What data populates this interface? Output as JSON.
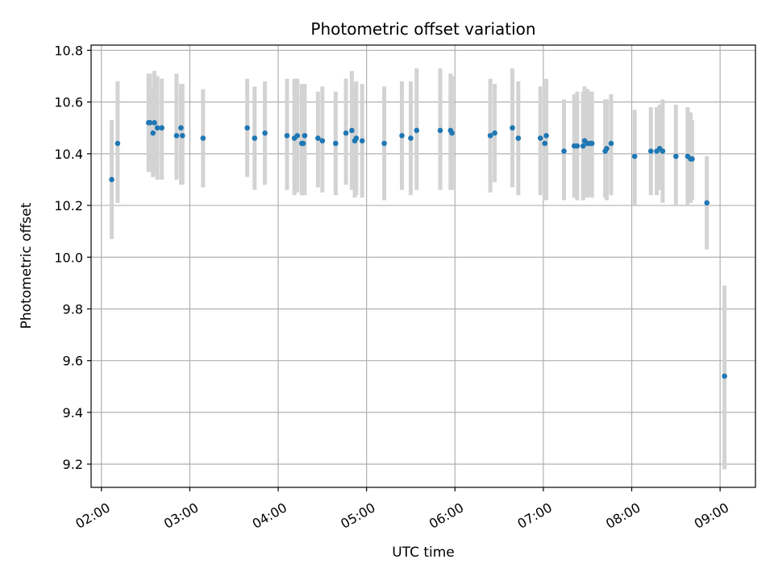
{
  "chart_data": {
    "type": "scatter",
    "title": "Photometric offset variation",
    "xlabel": "UTC time",
    "ylabel": "Photometric offset",
    "x_unit": "UTC time (HH:MM)",
    "xlim": [
      "01:53",
      "09:24"
    ],
    "ylim": [
      9.11,
      10.82
    ],
    "x_ticks": [
      "02:00",
      "03:00",
      "04:00",
      "05:00",
      "06:00",
      "07:00",
      "08:00",
      "09:00"
    ],
    "y_ticks": [
      "9.2",
      "9.4",
      "9.6",
      "9.8",
      "10.0",
      "10.2",
      "10.4",
      "10.6",
      "10.8"
    ],
    "grid": true,
    "colors": {
      "point": "#1f77b4",
      "error_bar": "#d3d3d3",
      "grid": "#b0b0b0"
    },
    "series": [
      {
        "x": [
          "02:07",
          "02:11",
          "02:32",
          "02:33",
          "02:35",
          "02:36",
          "02:38",
          "02:41",
          "02:51",
          "02:54",
          "02:55",
          "03:09",
          "03:39",
          "03:44",
          "03:51",
          "04:06",
          "04:11",
          "04:13",
          "04:16",
          "04:17",
          "04:18",
          "04:27",
          "04:30",
          "04:39",
          "04:46",
          "04:50",
          "04:52",
          "04:53",
          "04:57",
          "05:12",
          "05:24",
          "05:30",
          "05:34",
          "05:50",
          "05:57",
          "05:58",
          "06:24",
          "06:27",
          "06:39",
          "06:43",
          "06:58",
          "07:01",
          "07:02",
          "07:14",
          "07:21",
          "07:23",
          "07:27",
          "07:28",
          "07:30",
          "07:32",
          "07:33",
          "07:42",
          "07:43",
          "07:46",
          "08:02",
          "08:13",
          "08:17",
          "08:19",
          "08:21",
          "08:30",
          "08:38",
          "08:40",
          "08:41",
          "08:51",
          "09:03"
        ],
        "y": [
          10.3,
          10.44,
          10.52,
          10.52,
          10.48,
          10.52,
          10.5,
          10.5,
          10.47,
          10.5,
          10.47,
          10.46,
          10.5,
          10.46,
          10.48,
          10.47,
          10.46,
          10.47,
          10.44,
          10.44,
          10.47,
          10.46,
          10.45,
          10.44,
          10.48,
          10.49,
          10.45,
          10.46,
          10.45,
          10.44,
          10.47,
          10.46,
          10.49,
          10.49,
          10.49,
          10.48,
          10.47,
          10.48,
          10.5,
          10.46,
          10.46,
          10.44,
          10.47,
          10.41,
          10.43,
          10.43,
          10.43,
          10.45,
          10.44,
          10.44,
          10.44,
          10.41,
          10.42,
          10.44,
          10.39,
          10.41,
          10.41,
          10.42,
          10.41,
          10.39,
          10.39,
          10.38,
          10.38,
          10.21,
          9.54
        ],
        "y_low": [
          10.07,
          10.21,
          10.33,
          10.33,
          10.31,
          10.32,
          10.3,
          10.3,
          10.3,
          10.28,
          10.28,
          10.27,
          10.31,
          10.26,
          10.28,
          10.26,
          10.24,
          10.25,
          10.24,
          10.24,
          10.24,
          10.27,
          10.25,
          10.24,
          10.28,
          10.26,
          10.23,
          10.24,
          10.23,
          10.22,
          10.26,
          10.24,
          10.26,
          10.26,
          10.26,
          10.26,
          10.25,
          10.29,
          10.27,
          10.24,
          10.24,
          10.22,
          10.22,
          10.22,
          10.23,
          10.22,
          10.22,
          10.23,
          10.23,
          10.24,
          10.23,
          10.23,
          10.22,
          10.24,
          10.2,
          10.24,
          10.24,
          10.26,
          10.21,
          10.2,
          10.2,
          10.21,
          10.22,
          10.03,
          9.18
        ],
        "y_high": [
          10.53,
          10.68,
          10.71,
          10.71,
          10.66,
          10.72,
          10.7,
          10.69,
          10.71,
          10.67,
          10.67,
          10.65,
          10.69,
          10.66,
          10.68,
          10.69,
          10.69,
          10.69,
          10.67,
          10.64,
          10.67,
          10.64,
          10.66,
          10.64,
          10.69,
          10.72,
          10.67,
          10.68,
          10.67,
          10.66,
          10.68,
          10.68,
          10.73,
          10.73,
          10.71,
          10.7,
          10.69,
          10.67,
          10.73,
          10.68,
          10.66,
          10.66,
          10.69,
          10.61,
          10.63,
          10.64,
          10.64,
          10.66,
          10.65,
          10.64,
          10.64,
          10.61,
          10.61,
          10.63,
          10.57,
          10.58,
          10.58,
          10.59,
          10.61,
          10.59,
          10.58,
          10.56,
          10.53,
          10.39,
          9.89
        ]
      }
    ]
  }
}
